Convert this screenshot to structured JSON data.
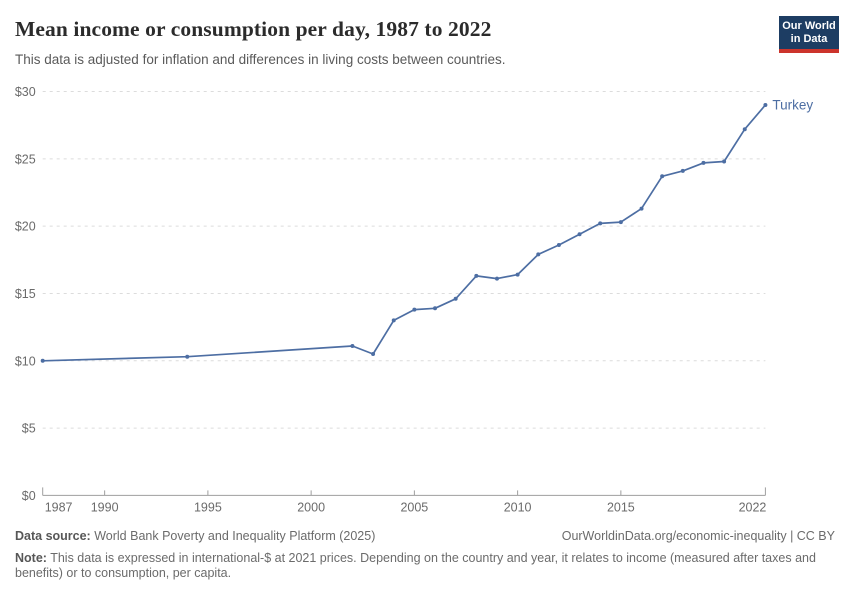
{
  "header": {
    "title": "Mean income or consumption per day, 1987 to 2022",
    "subtitle": "This data is adjusted for inflation and differences in living costs between countries.",
    "logo": {
      "line1": "Our World",
      "line2": "in Data"
    }
  },
  "chart_data": {
    "type": "line",
    "title": "Mean income or consumption per day, 1987 to 2022",
    "xlabel": "",
    "ylabel": "",
    "xlim": [
      1987,
      2022
    ],
    "ylim": [
      0,
      30
    ],
    "xticks": [
      1987,
      1990,
      1995,
      2000,
      2005,
      2010,
      2015,
      2022
    ],
    "yticks": [
      0,
      5,
      10,
      15,
      20,
      25,
      30
    ],
    "ytick_prefix": "$",
    "grid": "horizontal-dashed",
    "legend_position": "end-of-line-label",
    "series": [
      {
        "name": "Turkey",
        "color": "#4d6ea3",
        "points": [
          [
            1987,
            10.0
          ],
          [
            1994,
            10.3
          ],
          [
            2002,
            11.1
          ],
          [
            2003,
            10.5
          ],
          [
            2004,
            13.0
          ],
          [
            2005,
            13.8
          ],
          [
            2006,
            13.9
          ],
          [
            2007,
            14.6
          ],
          [
            2008,
            16.3
          ],
          [
            2009,
            16.1
          ],
          [
            2010,
            16.4
          ],
          [
            2011,
            17.9
          ],
          [
            2012,
            18.6
          ],
          [
            2013,
            19.4
          ],
          [
            2014,
            20.2
          ],
          [
            2015,
            20.3
          ],
          [
            2016,
            21.3
          ],
          [
            2017,
            23.7
          ],
          [
            2018,
            24.1
          ],
          [
            2019,
            24.7
          ],
          [
            2020,
            24.8
          ],
          [
            2021,
            27.2
          ],
          [
            2022,
            29.0
          ]
        ]
      }
    ]
  },
  "colors": {
    "line": "#4d6ea3",
    "grid": "#dcdcdc",
    "axis_line": "#9e9e9e",
    "axis_text": "#6b6b6b",
    "title_text": "#2b2b2b",
    "subtitle_text": "#5a5a5a",
    "logo_bg": "#1d3d63",
    "logo_accent": "#cc342c"
  },
  "footer": {
    "source_label": "Data source:",
    "source_text": "World Bank Poverty and Inequality Platform (2025)",
    "link": "OurWorldinData.org/economic-inequality | CC BY",
    "note_label": "Note:",
    "note_text": "This data is expressed in international-$ at 2021 prices. Depending on the country and year, it relates to income (measured after taxes and benefits) or to consumption, per capita."
  }
}
